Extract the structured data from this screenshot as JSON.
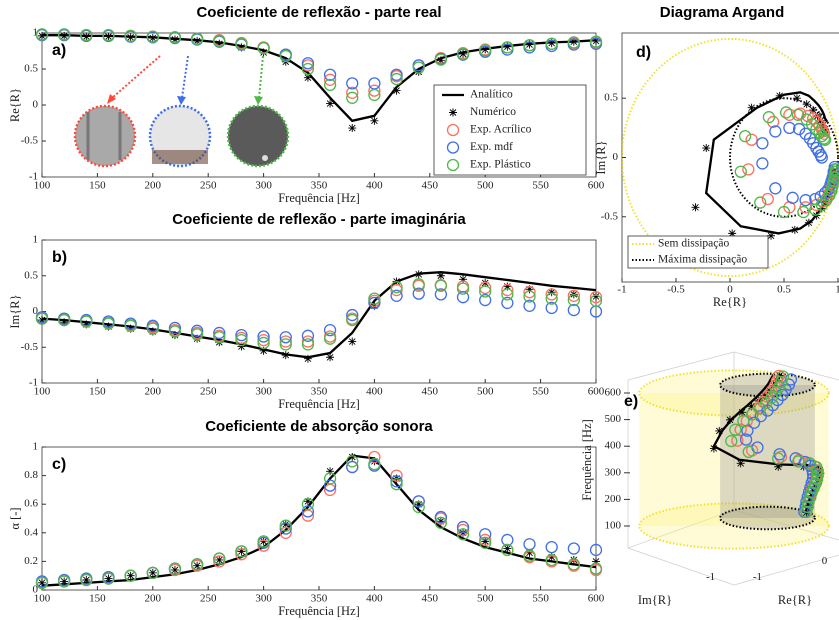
{
  "chart_data": [
    {
      "type": "line",
      "panel_label": "a)",
      "title": "Coeficiente de reflexão - parte real",
      "xlabel": "Frequência [Hz]",
      "ylabel": "Re{R}",
      "x": [
        100,
        120,
        140,
        160,
        180,
        200,
        220,
        240,
        260,
        280,
        300,
        320,
        340,
        360,
        380,
        400,
        420,
        440,
        460,
        480,
        500,
        520,
        540,
        560,
        580,
        600
      ],
      "xlim": [
        100,
        600
      ],
      "xticks": [
        100,
        150,
        200,
        250,
        300,
        350,
        400,
        450,
        500,
        550,
        600
      ],
      "ylim": [
        -1,
        1
      ],
      "yticks": [
        -1,
        -0.5,
        0,
        0.5,
        1
      ],
      "legend": "lower right",
      "series": [
        {
          "name": "Analítico",
          "style": "line",
          "color": "#000000",
          "values": [
            0.97,
            0.97,
            0.96,
            0.96,
            0.95,
            0.94,
            0.92,
            0.9,
            0.87,
            0.82,
            0.76,
            0.65,
            0.45,
            0.1,
            -0.22,
            -0.15,
            0.25,
            0.5,
            0.65,
            0.73,
            0.78,
            0.82,
            0.85,
            0.87,
            0.88,
            0.9
          ]
        },
        {
          "name": "Numérico",
          "style": "star",
          "color": "#000000",
          "values": [
            0.96,
            0.96,
            0.95,
            0.95,
            0.94,
            0.93,
            0.91,
            0.89,
            0.85,
            0.8,
            0.73,
            0.6,
            0.38,
            0.02,
            -0.32,
            -0.22,
            0.2,
            0.46,
            0.62,
            0.71,
            0.77,
            0.81,
            0.84,
            0.86,
            0.88,
            0.89
          ]
        },
        {
          "name": "Exp. Acrílico",
          "style": "circle",
          "color": "#ff6f5e",
          "values": [
            0.98,
            0.98,
            0.97,
            0.97,
            0.96,
            0.95,
            0.94,
            0.92,
            0.9,
            0.86,
            0.8,
            0.7,
            0.55,
            0.35,
            0.17,
            0.2,
            0.4,
            0.55,
            0.65,
            0.72,
            0.77,
            0.8,
            0.83,
            0.85,
            0.86,
            0.87
          ]
        },
        {
          "name": "Exp. mdf",
          "style": "circle",
          "color": "#3f6fe6",
          "values": [
            0.97,
            0.97,
            0.96,
            0.96,
            0.95,
            0.94,
            0.93,
            0.91,
            0.88,
            0.84,
            0.79,
            0.7,
            0.58,
            0.42,
            0.3,
            0.3,
            0.42,
            0.55,
            0.64,
            0.7,
            0.74,
            0.77,
            0.8,
            0.82,
            0.84,
            0.85
          ]
        },
        {
          "name": "Exp. Plástico",
          "style": "circle",
          "color": "#4fb848",
          "values": [
            0.98,
            0.98,
            0.97,
            0.97,
            0.96,
            0.95,
            0.94,
            0.92,
            0.89,
            0.85,
            0.79,
            0.68,
            0.5,
            0.28,
            0.1,
            0.14,
            0.36,
            0.52,
            0.63,
            0.71,
            0.76,
            0.8,
            0.83,
            0.85,
            0.87,
            0.88
          ]
        }
      ]
    },
    {
      "type": "line",
      "panel_label": "b)",
      "title": "Coeficiente de reflexão - parte imaginária",
      "xlabel": "Frequência [Hz]",
      "ylabel": "Im{R}",
      "x": [
        100,
        120,
        140,
        160,
        180,
        200,
        220,
        240,
        260,
        280,
        300,
        320,
        340,
        360,
        380,
        400,
        420,
        440,
        460,
        480,
        500,
        520,
        540,
        560,
        580,
        600
      ],
      "xlim": [
        100,
        600
      ],
      "xticks": [
        100,
        150,
        200,
        250,
        300,
        350,
        400,
        450,
        500,
        550,
        600
      ],
      "ylim": [
        -1,
        1
      ],
      "yticks": [
        -1,
        -0.5,
        0,
        0.5,
        1
      ],
      "series": [
        {
          "style": "line",
          "color": "#000000",
          "values": [
            -0.1,
            -0.12,
            -0.15,
            -0.18,
            -0.21,
            -0.25,
            -0.3,
            -0.35,
            -0.4,
            -0.46,
            -0.53,
            -0.6,
            -0.64,
            -0.58,
            -0.3,
            0.15,
            0.42,
            0.53,
            0.55,
            0.52,
            0.48,
            0.44,
            0.4,
            0.36,
            0.33,
            0.3
          ]
        },
        {
          "style": "star",
          "color": "#000000",
          "values": [
            -0.12,
            -0.15,
            -0.18,
            -0.21,
            -0.24,
            -0.28,
            -0.33,
            -0.38,
            -0.43,
            -0.49,
            -0.55,
            -0.61,
            -0.66,
            -0.64,
            -0.42,
            0.08,
            0.42,
            0.52,
            0.5,
            0.45,
            0.4,
            0.35,
            0.31,
            0.27,
            0.24,
            0.21
          ]
        },
        {
          "style": "circle",
          "color": "#ff6f5e",
          "values": [
            -0.1,
            -0.12,
            -0.14,
            -0.16,
            -0.19,
            -0.22,
            -0.26,
            -0.3,
            -0.34,
            -0.37,
            -0.4,
            -0.42,
            -0.42,
            -0.35,
            -0.1,
            0.15,
            0.3,
            0.36,
            0.37,
            0.35,
            0.33,
            0.3,
            0.27,
            0.24,
            0.22,
            0.2
          ]
        },
        {
          "style": "circle",
          "color": "#3f6fe6",
          "values": [
            -0.08,
            -0.1,
            -0.12,
            -0.14,
            -0.17,
            -0.2,
            -0.23,
            -0.27,
            -0.3,
            -0.33,
            -0.35,
            -0.36,
            -0.34,
            -0.26,
            -0.05,
            0.12,
            0.22,
            0.25,
            0.24,
            0.2,
            0.16,
            0.12,
            0.08,
            0.05,
            0.02,
            0
          ]
        },
        {
          "style": "circle",
          "color": "#4fb848",
          "values": [
            -0.1,
            -0.12,
            -0.14,
            -0.17,
            -0.2,
            -0.24,
            -0.28,
            -0.32,
            -0.36,
            -0.4,
            -0.44,
            -0.46,
            -0.46,
            -0.38,
            -0.12,
            0.18,
            0.34,
            0.38,
            0.36,
            0.32,
            0.28,
            0.24,
            0.21,
            0.18,
            0.16,
            0.15
          ]
        }
      ]
    },
    {
      "type": "line",
      "panel_label": "c)",
      "title": "Coeficiente de absorção sonora",
      "xlabel": "Frequência [Hz]",
      "ylabel": "α [-]",
      "x": [
        100,
        120,
        140,
        160,
        180,
        200,
        220,
        240,
        260,
        280,
        300,
        320,
        340,
        360,
        380,
        400,
        420,
        440,
        460,
        480,
        500,
        520,
        540,
        560,
        580,
        600
      ],
      "xlim": [
        100,
        600
      ],
      "xticks": [
        100,
        150,
        200,
        250,
        300,
        350,
        400,
        450,
        500,
        550,
        600
      ],
      "ylim": [
        0,
        1
      ],
      "yticks": [
        0,
        0.2,
        0.4,
        0.6,
        0.8,
        1
      ],
      "series": [
        {
          "style": "line",
          "color": "#000000",
          "values": [
            0.03,
            0.04,
            0.05,
            0.06,
            0.07,
            0.09,
            0.11,
            0.14,
            0.18,
            0.23,
            0.3,
            0.42,
            0.58,
            0.78,
            0.94,
            0.92,
            0.74,
            0.56,
            0.44,
            0.36,
            0.3,
            0.26,
            0.22,
            0.2,
            0.18,
            0.16
          ]
        },
        {
          "style": "star",
          "color": "#000000",
          "values": [
            0.05,
            0.06,
            0.07,
            0.08,
            0.1,
            0.12,
            0.14,
            0.17,
            0.21,
            0.27,
            0.34,
            0.46,
            0.62,
            0.83,
            0.93,
            0.9,
            0.78,
            0.6,
            0.48,
            0.4,
            0.34,
            0.29,
            0.26,
            0.23,
            0.21,
            0.2
          ]
        },
        {
          "style": "circle",
          "color": "#ff6f5e",
          "values": [
            0.05,
            0.06,
            0.07,
            0.08,
            0.1,
            0.12,
            0.14,
            0.17,
            0.2,
            0.25,
            0.31,
            0.4,
            0.52,
            0.7,
            0.86,
            0.93,
            0.8,
            0.62,
            0.5,
            0.42,
            0.35,
            0.28,
            0.23,
            0.2,
            0.17,
            0.14
          ]
        },
        {
          "style": "circle",
          "color": "#3f6fe6",
          "values": [
            0.06,
            0.07,
            0.08,
            0.09,
            0.1,
            0.12,
            0.15,
            0.18,
            0.22,
            0.27,
            0.33,
            0.43,
            0.55,
            0.73,
            0.86,
            0.87,
            0.76,
            0.62,
            0.51,
            0.44,
            0.39,
            0.35,
            0.32,
            0.3,
            0.29,
            0.28
          ]
        },
        {
          "style": "circle",
          "color": "#4fb848",
          "values": [
            0.05,
            0.06,
            0.07,
            0.08,
            0.1,
            0.12,
            0.15,
            0.18,
            0.22,
            0.27,
            0.34,
            0.45,
            0.6,
            0.78,
            0.9,
            0.88,
            0.74,
            0.58,
            0.47,
            0.39,
            0.33,
            0.28,
            0.24,
            0.21,
            0.18,
            0.15
          ]
        }
      ]
    },
    {
      "type": "argand",
      "panel_label": "d)",
      "title": "Diagrama Argand",
      "xlabel": "Re{R}",
      "ylabel": "Im{R}",
      "xlim": [
        -1,
        1
      ],
      "xticks": [
        -1,
        -0.5,
        0,
        0.5,
        1
      ],
      "ylim": [
        -1.05,
        1.05
      ],
      "yticks": [
        -0.5,
        0,
        0.5
      ],
      "legend": "lower left",
      "reference_circles": [
        {
          "name": "Sem dissipação",
          "color": "#f2e22c",
          "center": [
            0,
            0
          ],
          "radius": 1
        },
        {
          "name": "Máxima dissipação",
          "color": "#000000",
          "center": [
            0.5,
            0
          ],
          "radius": 0.5
        }
      ]
    },
    {
      "type": "helix3d",
      "panel_label": "e)",
      "zlabel": "Frequência [Hz]",
      "zlim": [
        100,
        600
      ],
      "zticks": [
        100,
        200,
        300,
        400,
        500,
        600
      ],
      "xlabel": "Re{R}",
      "xticks": [
        -1,
        0
      ],
      "ylabel": "Im{R}",
      "yticks": [
        -1
      ]
    }
  ]
}
